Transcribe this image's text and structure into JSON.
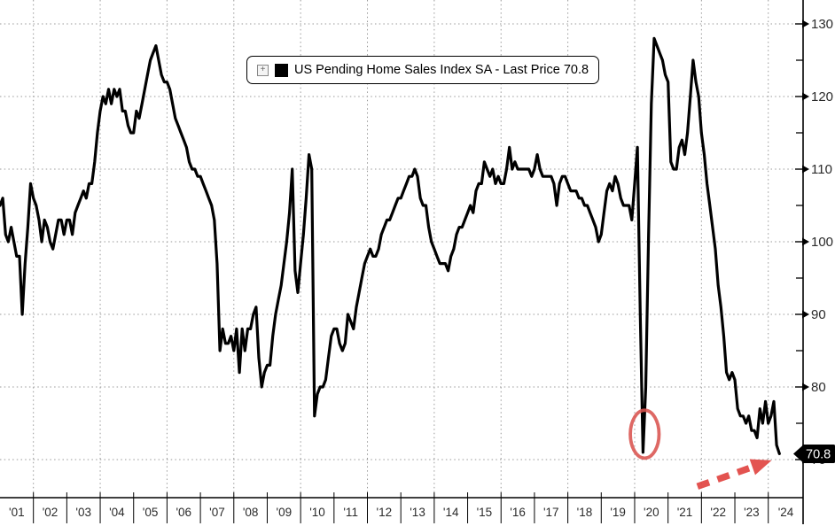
{
  "chart_data": {
    "type": "line",
    "title": "US Pending Home Sales Index SA - Last Price 70.8",
    "series_name": "US Pending Home Sales Index SA",
    "last_price": 70.8,
    "last_price_label": "70.8",
    "frequency": "monthly",
    "start_year": 2001,
    "x_tick_labels": [
      "'01",
      "'02",
      "'03",
      "'04",
      "'05",
      "'06",
      "'07",
      "'08",
      "'09",
      "'10",
      "'11",
      "'12",
      "'13",
      "'14",
      "'15",
      "'16",
      "'17",
      "'18",
      "'19",
      "'20",
      "'21",
      "'22",
      "'23",
      "'24"
    ],
    "y_major_ticks": [
      70,
      80,
      90,
      100,
      110,
      120,
      130
    ],
    "y_labeled_ticks": [
      80,
      90,
      100,
      110,
      120,
      130
    ],
    "y_minor_ticks": [
      75,
      85,
      95,
      105,
      115,
      125
    ],
    "ylim": [
      64.5,
      133.3
    ],
    "xlim_years": [
      2001,
      2025
    ],
    "grid": "dotted horizontal at major y ticks, dotted vertical at even-year boundaries",
    "legend_position": "top-center framed box",
    "values": [
      105,
      106,
      101,
      100,
      102,
      100,
      98,
      98,
      90,
      97,
      102,
      108,
      106,
      105,
      103,
      100,
      103,
      102,
      100,
      99,
      101,
      103,
      103,
      101,
      103,
      103,
      101,
      104,
      105,
      106,
      107,
      106,
      108,
      108,
      111,
      115,
      118,
      120,
      119,
      121,
      119,
      121,
      120,
      121,
      118,
      118,
      116,
      115,
      115,
      118,
      117,
      119,
      121,
      123,
      125,
      126,
      127,
      125,
      123,
      122,
      122,
      121,
      119,
      117,
      116,
      115,
      114,
      113,
      111,
      110,
      110,
      109,
      109,
      108,
      107,
      106,
      105,
      103,
      97,
      85,
      88,
      86,
      86,
      87,
      85,
      88,
      82,
      88,
      85,
      88,
      88,
      90,
      91,
      84,
      80,
      82,
      83,
      83,
      87,
      90,
      92,
      94,
      97,
      100,
      104,
      110,
      96,
      93,
      97,
      101,
      106,
      112,
      110,
      76,
      79,
      80,
      80,
      81,
      84,
      87,
      88,
      88,
      86,
      85,
      86,
      90,
      89,
      88,
      91,
      93,
      95,
      97,
      98,
      99,
      98,
      98,
      99,
      101,
      102,
      103,
      103,
      104,
      105,
      106,
      106,
      107,
      108,
      109,
      109,
      110,
      109,
      106,
      105,
      105,
      102,
      100,
      99,
      98,
      97,
      97,
      97,
      96,
      98,
      99,
      101,
      102,
      102,
      103,
      104,
      105,
      104,
      107,
      108,
      108,
      111,
      110,
      109,
      110,
      108,
      109,
      108,
      108,
      110,
      113,
      110,
      111,
      110,
      110,
      110,
      110,
      110,
      109,
      110,
      112,
      110,
      109,
      109,
      109,
      109,
      108,
      105,
      108,
      109,
      109,
      108,
      107,
      107,
      107,
      106,
      106,
      105,
      105,
      104,
      103,
      102,
      100,
      101,
      104,
      107,
      108,
      107,
      109,
      108,
      106,
      105,
      105,
      105,
      103,
      108,
      113,
      90,
      71,
      80,
      101,
      119,
      128,
      127,
      126,
      125,
      123,
      122,
      111,
      110,
      110,
      113,
      114,
      112,
      115,
      120,
      125,
      122,
      120,
      115,
      112,
      108,
      105,
      102,
      99,
      94,
      91,
      87,
      82,
      81,
      82,
      81,
      77,
      76,
      76,
      75,
      76,
      74,
      74,
      73,
      77,
      75,
      78,
      75,
      76,
      78,
      72,
      70.8
    ],
    "annotations": {
      "dip_circle": {
        "year": 2020.3,
        "value": 73.5,
        "rx_years": 0.43,
        "ry_values": 3.3,
        "meaning": "circle around April 2020 collapse"
      },
      "trend_arrow": {
        "from_year": 2021.88,
        "from_value": 66.3,
        "tip_year": 2024.1,
        "tip_value": 69.9,
        "meaning": "dashed arrow pointing at latest 70.8 print"
      }
    },
    "colors": {
      "line": "#000000",
      "grid": "#999999",
      "axis": "#000000",
      "tick_label": "#2a2a2a",
      "annotation_red": "#e14542",
      "circle_red": "#d9534f",
      "price_tag_bg": "#000000",
      "price_tag_text": "#ffffff"
    }
  },
  "legend": {
    "expand_icon_glyph": "+",
    "label": "US Pending Home Sales Index SA - Last Price 70.8"
  }
}
